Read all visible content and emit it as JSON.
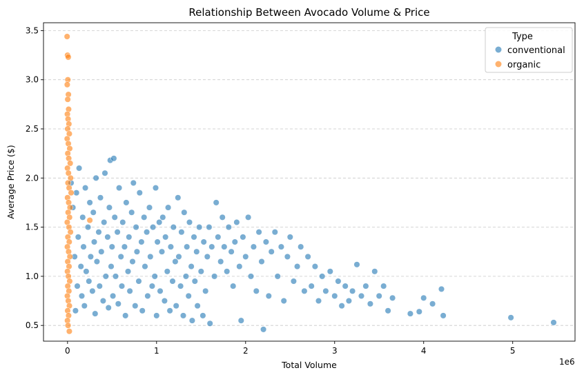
{
  "chart_data": {
    "type": "scatter",
    "title": "Relationship Between Avocado Volume & Price",
    "xlabel": "Total Volume",
    "ylabel": "Average Price ($)",
    "x_offset_label": "1e6",
    "xlim": [
      -270000,
      5700000
    ],
    "ylim": [
      0.34,
      3.58
    ],
    "x_ticks": [
      0,
      1000000,
      2000000,
      3000000,
      4000000,
      5000000
    ],
    "x_tick_labels": [
      "0",
      "1",
      "2",
      "3",
      "4",
      "5"
    ],
    "y_ticks": [
      0.5,
      1.0,
      1.5,
      2.0,
      2.5,
      3.0,
      3.5
    ],
    "y_tick_labels": [
      "0.5",
      "1.0",
      "1.5",
      "2.0",
      "2.5",
      "3.0",
      "3.5"
    ],
    "grid": "y-dashed",
    "legend": {
      "title": "Type",
      "position": "top-right"
    },
    "series": [
      {
        "name": "conventional",
        "color": "#1f77b4",
        "points": [
          [
            40000,
            1.95
          ],
          [
            60000,
            1.7
          ],
          [
            80000,
            1.2
          ],
          [
            90000,
            0.65
          ],
          [
            100000,
            1.85
          ],
          [
            110000,
            0.9
          ],
          [
            120000,
            1.4
          ],
          [
            130000,
            2.1
          ],
          [
            150000,
            1.1
          ],
          [
            160000,
            0.8
          ],
          [
            170000,
            1.6
          ],
          [
            180000,
            1.3
          ],
          [
            190000,
            0.7
          ],
          [
            200000,
            1.9
          ],
          [
            210000,
            1.05
          ],
          [
            230000,
            1.5
          ],
          [
            240000,
            0.95
          ],
          [
            250000,
            1.75
          ],
          [
            260000,
            1.2
          ],
          [
            280000,
            0.85
          ],
          [
            290000,
            1.65
          ],
          [
            300000,
            1.35
          ],
          [
            310000,
            0.62
          ],
          [
            320000,
            2.0
          ],
          [
            330000,
            1.15
          ],
          [
            350000,
            1.45
          ],
          [
            360000,
            0.9
          ],
          [
            370000,
            1.8
          ],
          [
            380000,
            1.25
          ],
          [
            400000,
            0.75
          ],
          [
            410000,
            1.55
          ],
          [
            420000,
            2.05
          ],
          [
            430000,
            1.0
          ],
          [
            450000,
            1.4
          ],
          [
            460000,
            0.68
          ],
          [
            470000,
            1.7
          ],
          [
            480000,
            2.18
          ],
          [
            490000,
            1.1
          ],
          [
            500000,
            1.3
          ],
          [
            510000,
            0.8
          ],
          [
            520000,
            2.2
          ],
          [
            530000,
            1.6
          ],
          [
            540000,
            1.0
          ],
          [
            560000,
            1.45
          ],
          [
            570000,
            0.72
          ],
          [
            580000,
            1.9
          ],
          [
            600000,
            1.2
          ],
          [
            610000,
            0.9
          ],
          [
            620000,
            1.55
          ],
          [
            640000,
            1.3
          ],
          [
            650000,
            0.6
          ],
          [
            660000,
            1.75
          ],
          [
            680000,
            1.05
          ],
          [
            690000,
            1.4
          ],
          [
            700000,
            0.85
          ],
          [
            720000,
            1.65
          ],
          [
            730000,
            1.15
          ],
          [
            740000,
            1.95
          ],
          [
            760000,
            0.7
          ],
          [
            770000,
            1.5
          ],
          [
            780000,
            1.25
          ],
          [
            800000,
            0.95
          ],
          [
            810000,
            1.85
          ],
          [
            830000,
            1.35
          ],
          [
            840000,
            0.65
          ],
          [
            860000,
            1.6
          ],
          [
            870000,
            1.1
          ],
          [
            890000,
            1.45
          ],
          [
            900000,
            0.8
          ],
          [
            920000,
            1.7
          ],
          [
            930000,
            1.2
          ],
          [
            950000,
            0.9
          ],
          [
            960000,
            1.5
          ],
          [
            980000,
            1.0
          ],
          [
            990000,
            1.9
          ],
          [
            1000000,
            0.6
          ],
          [
            1010000,
            1.35
          ],
          [
            1030000,
            1.55
          ],
          [
            1040000,
            0.85
          ],
          [
            1060000,
            1.25
          ],
          [
            1070000,
            1.6
          ],
          [
            1090000,
            0.75
          ],
          [
            1100000,
            1.4
          ],
          [
            1120000,
            1.05
          ],
          [
            1130000,
            1.7
          ],
          [
            1150000,
            0.65
          ],
          [
            1160000,
            1.3
          ],
          [
            1180000,
            0.95
          ],
          [
            1190000,
            1.5
          ],
          [
            1210000,
            1.15
          ],
          [
            1220000,
            0.7
          ],
          [
            1240000,
            1.8
          ],
          [
            1250000,
            1.2
          ],
          [
            1270000,
            0.9
          ],
          [
            1280000,
            1.45
          ],
          [
            1300000,
            0.6
          ],
          [
            1310000,
            1.65
          ],
          [
            1330000,
            1.0
          ],
          [
            1340000,
            1.3
          ],
          [
            1360000,
            0.8
          ],
          [
            1370000,
            1.55
          ],
          [
            1390000,
            1.1
          ],
          [
            1400000,
            0.55
          ],
          [
            1420000,
            1.4
          ],
          [
            1430000,
            0.95
          ],
          [
            1450000,
            1.25
          ],
          [
            1460000,
            0.7
          ],
          [
            1480000,
            1.5
          ],
          [
            1500000,
            1.05
          ],
          [
            1520000,
            0.6
          ],
          [
            1530000,
            1.35
          ],
          [
            1550000,
            0.85
          ],
          [
            1570000,
            1.2
          ],
          [
            1590000,
            1.5
          ],
          [
            1600000,
            0.52
          ],
          [
            1620000,
            1.3
          ],
          [
            1650000,
            1.0
          ],
          [
            1670000,
            1.75
          ],
          [
            1690000,
            1.4
          ],
          [
            1720000,
            1.15
          ],
          [
            1740000,
            1.6
          ],
          [
            1760000,
            1.3
          ],
          [
            1790000,
            1.05
          ],
          [
            1810000,
            1.5
          ],
          [
            1840000,
            1.25
          ],
          [
            1860000,
            0.9
          ],
          [
            1880000,
            1.35
          ],
          [
            1900000,
            1.55
          ],
          [
            1930000,
            1.1
          ],
          [
            1950000,
            0.55
          ],
          [
            1970000,
            1.4
          ],
          [
            2000000,
            1.2
          ],
          [
            2030000,
            1.6
          ],
          [
            2060000,
            1.0
          ],
          [
            2090000,
            1.3
          ],
          [
            2120000,
            0.85
          ],
          [
            2150000,
            1.45
          ],
          [
            2200000,
            0.46
          ],
          [
            2180000,
            1.15
          ],
          [
            2230000,
            1.35
          ],
          [
            2260000,
            0.8
          ],
          [
            2290000,
            1.25
          ],
          [
            2330000,
            1.45
          ],
          [
            2360000,
            1.0
          ],
          [
            2400000,
            1.3
          ],
          [
            2430000,
            0.75
          ],
          [
            2470000,
            1.2
          ],
          [
            2500000,
            1.4
          ],
          [
            2540000,
            0.95
          ],
          [
            2580000,
            1.1
          ],
          [
            2620000,
            1.3
          ],
          [
            2660000,
            0.85
          ],
          [
            2700000,
            1.2
          ],
          [
            2740000,
            0.9
          ],
          [
            2780000,
            1.1
          ],
          [
            2820000,
            0.75
          ],
          [
            2860000,
            1.0
          ],
          [
            2900000,
            0.85
          ],
          [
            2950000,
            1.05
          ],
          [
            3000000,
            0.8
          ],
          [
            3040000,
            0.95
          ],
          [
            3080000,
            0.7
          ],
          [
            3120000,
            0.9
          ],
          [
            3160000,
            0.75
          ],
          [
            3200000,
            0.85
          ],
          [
            3250000,
            1.12
          ],
          [
            3300000,
            0.8
          ],
          [
            3350000,
            0.9
          ],
          [
            3400000,
            0.72
          ],
          [
            3450000,
            1.05
          ],
          [
            3500000,
            0.8
          ],
          [
            3550000,
            0.9
          ],
          [
            3600000,
            0.65
          ],
          [
            3650000,
            0.78
          ],
          [
            3850000,
            0.62
          ],
          [
            3950000,
            0.64
          ],
          [
            4000000,
            0.78
          ],
          [
            4100000,
            0.72
          ],
          [
            4200000,
            0.87
          ],
          [
            4220000,
            0.6
          ],
          [
            4980000,
            0.58
          ],
          [
            5460000,
            0.53
          ]
        ]
      },
      {
        "name": "organic",
        "color": "#ff7f0e",
        "points": [
          [
            -5000,
            3.44
          ],
          [
            0,
            3.25
          ],
          [
            8000,
            3.23
          ],
          [
            4000,
            3.0
          ],
          [
            -3000,
            2.95
          ],
          [
            10000,
            2.85
          ],
          [
            2000,
            2.8
          ],
          [
            12000,
            2.7
          ],
          [
            -2000,
            2.65
          ],
          [
            6000,
            2.6
          ],
          [
            15000,
            2.55
          ],
          [
            1000,
            2.5
          ],
          [
            20000,
            2.45
          ],
          [
            -4000,
            2.4
          ],
          [
            9000,
            2.35
          ],
          [
            25000,
            2.3
          ],
          [
            3000,
            2.25
          ],
          [
            14000,
            2.2
          ],
          [
            30000,
            2.15
          ],
          [
            -1000,
            2.1
          ],
          [
            11000,
            2.05
          ],
          [
            35000,
            2.0
          ],
          [
            5000,
            1.95
          ],
          [
            18000,
            1.9
          ],
          [
            40000,
            1.85
          ],
          [
            0,
            1.8
          ],
          [
            13000,
            1.75
          ],
          [
            28000,
            1.7
          ],
          [
            7000,
            1.65
          ],
          [
            22000,
            1.6
          ],
          [
            -3000,
            1.55
          ],
          [
            16000,
            1.5
          ],
          [
            33000,
            1.45
          ],
          [
            4000,
            1.4
          ],
          [
            19000,
            1.35
          ],
          [
            -2000,
            1.3
          ],
          [
            12000,
            1.25
          ],
          [
            26000,
            1.2
          ],
          [
            2000,
            1.15
          ],
          [
            17000,
            1.1
          ],
          [
            -1000,
            1.05
          ],
          [
            10000,
            1.0
          ],
          [
            24000,
            0.95
          ],
          [
            3000,
            0.9
          ],
          [
            15000,
            0.85
          ],
          [
            -2000,
            0.8
          ],
          [
            8000,
            0.75
          ],
          [
            21000,
            0.7
          ],
          [
            1000,
            0.65
          ],
          [
            12000,
            0.6
          ],
          [
            -1000,
            0.55
          ],
          [
            6000,
            0.5
          ],
          [
            20000,
            0.44
          ],
          [
            250000,
            1.57
          ]
        ]
      }
    ]
  }
}
